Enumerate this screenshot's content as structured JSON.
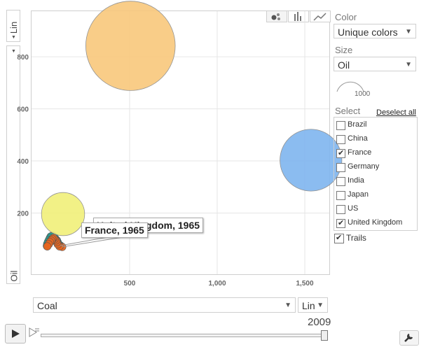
{
  "y_axis": {
    "label": "Oil",
    "scale": "Lin"
  },
  "x_axis": {
    "label": "Coal",
    "scale": "Lin"
  },
  "view_tabs": [
    "bubble-icon",
    "bar-chart-icon",
    "line-chart-icon"
  ],
  "panel": {
    "color_label": "Color",
    "color_value": "Unique colors",
    "size_label": "Size",
    "size_value": "Oil",
    "size_legend_value": "1000",
    "select_label": "Select",
    "deselect_all": "Deselect all",
    "items": [
      {
        "name": "Brazil",
        "checked": false
      },
      {
        "name": "China",
        "checked": false
      },
      {
        "name": "France",
        "checked": true
      },
      {
        "name": "Germany",
        "checked": false
      },
      {
        "name": "India",
        "checked": false
      },
      {
        "name": "Japan",
        "checked": false
      },
      {
        "name": "US",
        "checked": false
      },
      {
        "name": "United Kingdom",
        "checked": true
      }
    ],
    "trails_label": "Trails",
    "trails_checked": true
  },
  "playback": {
    "year": "2009"
  },
  "tooltips": {
    "uk": "United Kingdom, 1965",
    "france": "France, 1965"
  },
  "chart_data": {
    "type": "scatter",
    "xlabel": "Coal",
    "ylabel": "Oil",
    "xlim": [
      -60,
      1640
    ],
    "ylim": [
      -35,
      975
    ],
    "xticks": [
      500,
      1000,
      1500
    ],
    "xtick_labels": [
      "500",
      "1,000",
      "1,500"
    ],
    "yticks": [
      200,
      400,
      600,
      800
    ],
    "ytick_labels": [
      "200",
      "400",
      "600",
      "800"
    ],
    "grid": true,
    "points": [
      {
        "name": "US",
        "x": 505,
        "y": 842,
        "size": 842,
        "color": "#f9c87c"
      },
      {
        "name": "China",
        "x": 1535,
        "y": 403,
        "size": 403,
        "color": "#7fb5ef"
      },
      {
        "name": "Japan",
        "x": 120,
        "y": 196,
        "size": 196,
        "color": "#f1f07a"
      }
    ],
    "trails": [
      {
        "name": "United Kingdom",
        "color": "#23a79a",
        "points": [
          {
            "x": 105,
            "y": 75
          },
          {
            "x": 95,
            "y": 80
          },
          {
            "x": 90,
            "y": 87
          },
          {
            "x": 85,
            "y": 95
          },
          {
            "x": 75,
            "y": 102
          },
          {
            "x": 70,
            "y": 108
          },
          {
            "x": 60,
            "y": 113
          },
          {
            "x": 50,
            "y": 110
          },
          {
            "x": 45,
            "y": 104
          },
          {
            "x": 40,
            "y": 97
          },
          {
            "x": 35,
            "y": 90
          },
          {
            "x": 30,
            "y": 82
          },
          {
            "x": 28,
            "y": 74
          }
        ]
      },
      {
        "name": "France",
        "color": "#e8661f",
        "points": [
          {
            "x": 115,
            "y": 70
          },
          {
            "x": 100,
            "y": 72
          },
          {
            "x": 90,
            "y": 80
          },
          {
            "x": 85,
            "y": 88
          },
          {
            "x": 80,
            "y": 95
          },
          {
            "x": 72,
            "y": 100
          },
          {
            "x": 65,
            "y": 104
          },
          {
            "x": 58,
            "y": 100
          },
          {
            "x": 52,
            "y": 94
          },
          {
            "x": 45,
            "y": 88
          },
          {
            "x": 38,
            "y": 80
          },
          {
            "x": 30,
            "y": 72
          }
        ]
      }
    ]
  }
}
